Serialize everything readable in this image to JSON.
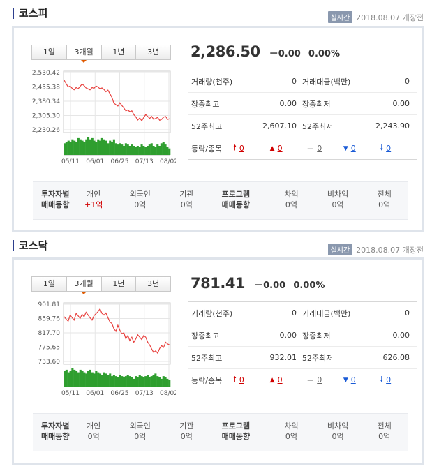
{
  "colors": {
    "up": "#d10000",
    "down": "#1a5bd6",
    "line": "#e8413e",
    "volume": "#2f9e2f",
    "accent": "#2d3f8e"
  },
  "sections": [
    {
      "title": "코스피",
      "status_badge": "실시간",
      "date_status": "2018.08.07  개장전",
      "tabs": [
        "1일",
        "3개월",
        "1년",
        "3년"
      ],
      "active_tab": "3개월",
      "price": "2,286.50",
      "change": "－0.00",
      "change_pct": "0.00%",
      "info": {
        "volume_label": "거래량(천주)",
        "volume": "0",
        "amount_label": "거래대금(백만)",
        "amount": "0",
        "high_label": "장중최고",
        "high": "0.00",
        "low_label": "장중최저",
        "low": "0.00",
        "w52_high_label": "52주최고",
        "w52_high": "2,607.10",
        "w52_low_label": "52주최저",
        "w52_low": "2,243.90",
        "updown_label": "등락/종목",
        "upper_limit": "0",
        "up": "0",
        "unchanged": "0",
        "down": "0",
        "lower_limit": "0"
      },
      "investor": {
        "head": [
          "투자자별",
          "매매동향"
        ],
        "individual_label": "개인",
        "individual": "+1억",
        "foreign_label": "외국인",
        "foreign": "0억",
        "institution_label": "기관",
        "institution": "0억",
        "program_head": [
          "프로그램",
          "매매동향"
        ],
        "arbitrage_label": "차익",
        "arbitrage": "0억",
        "nonarb_label": "비차익",
        "nonarb": "0억",
        "total_label": "전체",
        "total": "0억"
      },
      "chart_data": {
        "type": "line",
        "y_ticks": [
          "2,530.42",
          "2,455.38",
          "2,380.34",
          "2,305.30",
          "2,230.26"
        ],
        "ylim": [
          2230.26,
          2530.42
        ],
        "x_ticks": [
          "05/11",
          "06/01",
          "06/25",
          "07/13",
          "08/02"
        ],
        "values": [
          2490,
          2472,
          2455,
          2460,
          2448,
          2440,
          2452,
          2445,
          2458,
          2470,
          2462,
          2450,
          2445,
          2440,
          2452,
          2448,
          2460,
          2455,
          2445,
          2450,
          2442,
          2430,
          2438,
          2420,
          2400,
          2370,
          2362,
          2355,
          2372,
          2358,
          2345,
          2330,
          2335,
          2325,
          2330,
          2310,
          2298,
          2282,
          2292,
          2278,
          2295,
          2310,
          2300,
          2290,
          2300,
          2285,
          2290,
          2295,
          2280,
          2285,
          2297,
          2300,
          2285,
          2288
        ],
        "volume": [
          9,
          10,
          11,
          10,
          12,
          11,
          10,
          13,
          12,
          11,
          10,
          12,
          14,
          12,
          13,
          11,
          10,
          12,
          11,
          13,
          12,
          11,
          9,
          11,
          10,
          12,
          9,
          8,
          9,
          8,
          7,
          9,
          8,
          7,
          8,
          7,
          6,
          7,
          6,
          8,
          7,
          6,
          7,
          8,
          9,
          7,
          6,
          8,
          7,
          9,
          10,
          8,
          6,
          5
        ]
      }
    },
    {
      "title": "코스닥",
      "status_badge": "실시간",
      "date_status": "2018.08.07  개장전",
      "tabs": [
        "1일",
        "3개월",
        "1년",
        "3년"
      ],
      "active_tab": "3개월",
      "price": "781.41",
      "change": "－0.00",
      "change_pct": "0.00%",
      "info": {
        "volume_label": "거래량(천주)",
        "volume": "0",
        "amount_label": "거래대금(백만)",
        "amount": "0",
        "high_label": "장중최고",
        "high": "0.00",
        "low_label": "장중최저",
        "low": "0.00",
        "w52_high_label": "52주최고",
        "w52_high": "932.01",
        "w52_low_label": "52주최저",
        "w52_low": "626.08",
        "updown_label": "등락/종목",
        "upper_limit": "0",
        "up": "0",
        "unchanged": "0",
        "down": "0",
        "lower_limit": "0"
      },
      "investor": {
        "head": [
          "투자자별",
          "매매동향"
        ],
        "individual_label": "개인",
        "individual": "0억",
        "foreign_label": "외국인",
        "foreign": "0억",
        "institution_label": "기관",
        "institution": "0억",
        "program_head": [
          "프로그램",
          "매매동향"
        ],
        "arbitrage_label": "차익",
        "arbitrage": "0억",
        "nonarb_label": "비차익",
        "nonarb": "0억",
        "total_label": "전체",
        "total": "0억"
      },
      "chart_data": {
        "type": "line",
        "y_ticks": [
          "901.81",
          "859.76",
          "817.70",
          "775.65",
          "733.60"
        ],
        "ylim": [
          733.6,
          901.81
        ],
        "x_ticks": [
          "05/11",
          "06/01",
          "06/25",
          "07/13",
          "08/02"
        ],
        "values": [
          865,
          858,
          852,
          870,
          862,
          855,
          875,
          868,
          860,
          872,
          865,
          878,
          870,
          862,
          855,
          868,
          874,
          880,
          888,
          875,
          870,
          876,
          862,
          850,
          845,
          830,
          822,
          840,
          825,
          815,
          818,
          800,
          810,
          795,
          805,
          790,
          800,
          812,
          805,
          798,
          810,
          805,
          790,
          782,
          770,
          760,
          765,
          758,
          772,
          780,
          775,
          790,
          785,
          782
        ],
        "volume": [
          12,
          13,
          11,
          12,
          14,
          13,
          12,
          11,
          13,
          12,
          11,
          10,
          12,
          13,
          11,
          10,
          12,
          11,
          10,
          9,
          11,
          10,
          9,
          10,
          8,
          9,
          8,
          7,
          9,
          8,
          7,
          8,
          9,
          8,
          7,
          6,
          8,
          7,
          9,
          8,
          7,
          8,
          9,
          7,
          8,
          9,
          10,
          8,
          7,
          6,
          8,
          7,
          6,
          5
        ]
      }
    }
  ]
}
